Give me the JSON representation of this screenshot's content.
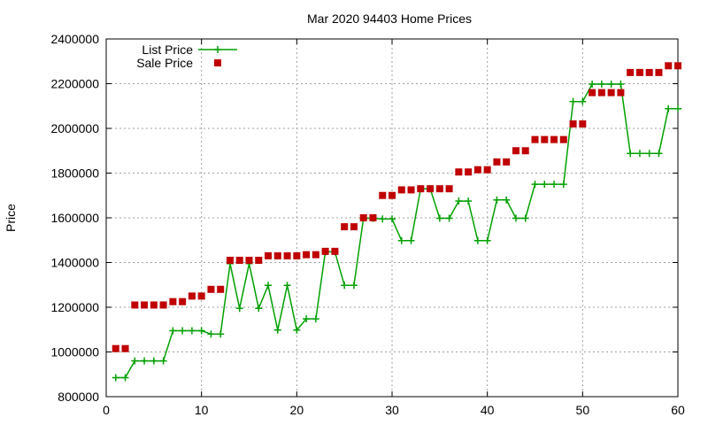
{
  "chart_data": {
    "type": "line",
    "title": "Mar 2020 94403 Home Prices",
    "xlabel": "",
    "ylabel": "Price",
    "xlim": [
      0,
      60
    ],
    "ylim": [
      800000,
      2400000
    ],
    "x_ticks": [
      0,
      10,
      20,
      30,
      40,
      50,
      60
    ],
    "y_ticks": [
      800000,
      1000000,
      1200000,
      1400000,
      1600000,
      1800000,
      2000000,
      2200000,
      2400000
    ],
    "grid": true,
    "legend_position": "top-left",
    "colors": {
      "list": "#00a000",
      "sale": "#c00000"
    },
    "series": [
      {
        "name": "List Price",
        "style": "line-plus",
        "x": [
          1,
          2,
          3,
          4,
          5,
          6,
          7,
          8,
          9,
          10,
          11,
          12,
          13,
          14,
          15,
          16,
          17,
          18,
          19,
          20,
          21,
          22,
          23,
          24,
          25,
          26,
          27,
          28,
          29,
          30,
          31,
          32,
          33,
          34,
          35,
          36,
          37,
          38,
          39,
          40,
          41,
          42,
          43,
          44,
          45,
          46,
          47,
          48,
          49,
          50,
          51,
          52,
          53,
          54,
          55,
          56,
          57,
          58,
          59,
          60
        ],
        "y": [
          885000,
          885000,
          960000,
          960000,
          960000,
          960000,
          1095000,
          1095000,
          1095000,
          1095000,
          1080000,
          1080000,
          1395000,
          1195000,
          1395000,
          1195000,
          1298000,
          1098000,
          1298000,
          1098000,
          1148000,
          1148000,
          1448000,
          1448000,
          1298000,
          1298000,
          1598000,
          1598000,
          1595000,
          1595000,
          1498000,
          1498000,
          1730000,
          1730000,
          1598000,
          1598000,
          1675000,
          1675000,
          1498000,
          1498000,
          1680000,
          1680000,
          1598000,
          1598000,
          1750000,
          1750000,
          1750000,
          1750000,
          2120000,
          2120000,
          2198000,
          2198000,
          2198000,
          2198000,
          1888000,
          1888000,
          1888000,
          1888000,
          2088000,
          2088000
        ]
      },
      {
        "name": "Sale Price",
        "style": "points-square",
        "x": [
          1,
          2,
          3,
          4,
          5,
          6,
          7,
          8,
          9,
          10,
          11,
          12,
          13,
          14,
          15,
          16,
          17,
          18,
          19,
          20,
          21,
          22,
          23,
          24,
          25,
          26,
          27,
          28,
          29,
          30,
          31,
          32,
          33,
          34,
          35,
          36,
          37,
          38,
          39,
          40,
          41,
          42,
          43,
          44,
          45,
          46,
          47,
          48,
          49,
          50,
          51,
          52,
          53,
          54,
          55,
          56,
          57,
          58,
          59,
          60
        ],
        "y": [
          1015000,
          1015000,
          1210000,
          1210000,
          1210000,
          1210000,
          1225000,
          1225000,
          1250000,
          1250000,
          1280000,
          1280000,
          1410000,
          1410000,
          1410000,
          1410000,
          1430000,
          1430000,
          1430000,
          1430000,
          1435000,
          1435000,
          1450000,
          1450000,
          1560000,
          1560000,
          1600000,
          1600000,
          1700000,
          1700000,
          1725000,
          1725000,
          1730000,
          1730000,
          1730000,
          1730000,
          1805000,
          1805000,
          1815000,
          1815000,
          1850000,
          1850000,
          1900000,
          1900000,
          1950000,
          1950000,
          1950000,
          1950000,
          2020000,
          2020000,
          2160000,
          2160000,
          2160000,
          2160000,
          2250000,
          2250000,
          2250000,
          2250000,
          2280000,
          2280000
        ]
      }
    ]
  }
}
